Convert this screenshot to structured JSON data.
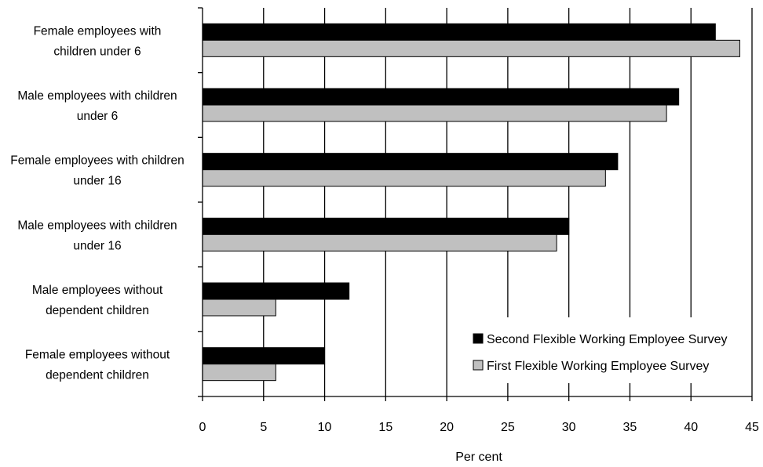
{
  "chart_data": {
    "type": "bar",
    "orientation": "horizontal",
    "categories": [
      [
        "Female employees  with",
        "children under 6"
      ],
      [
        "Male employees with children",
        "under 6"
      ],
      [
        "Female employees with children",
        "under 16"
      ],
      [
        "Male employees with children",
        "under 16"
      ],
      [
        "Male employees without",
        "dependent children"
      ],
      [
        "Female employees without",
        "dependent children"
      ]
    ],
    "series": [
      {
        "name": "Second Flexible Working Employee Survey",
        "color": "#000000",
        "values": [
          42,
          39,
          34,
          30,
          12,
          10
        ]
      },
      {
        "name": "First Flexible Working Employee Survey",
        "color": "#c0c0c0",
        "values": [
          44,
          38,
          33,
          29,
          6,
          6
        ]
      }
    ],
    "xticks": [
      0,
      5,
      10,
      15,
      20,
      25,
      30,
      35,
      40,
      45
    ],
    "xlim": [
      0,
      45
    ],
    "xlabel": "Per cent",
    "ylabel": "",
    "title": "",
    "grid": "vertical",
    "legend_position": "bottom-right"
  }
}
